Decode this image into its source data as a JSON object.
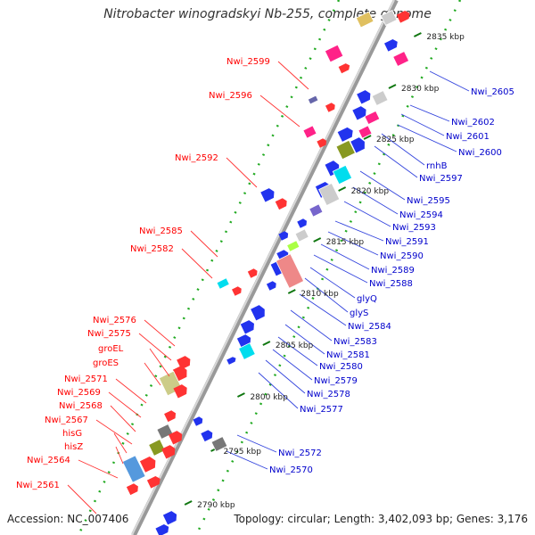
{
  "title": "Nitrobacter winogradskyi Nb-255, complete genome",
  "accession": "Accession: NC_007406",
  "topology": "Topology: circular; Length: 3,402,093 bp; Genes: 3,176",
  "colors": {
    "backbone": "#aaaaaa",
    "label_left": "#ff0000",
    "label_right": "#0000cc",
    "tick": "#228822"
  },
  "scale_labels": [
    "2835 kbp",
    "2830 kbp",
    "2825 kbp",
    "2820 kbp",
    "2815 kbp",
    "2810 kbp",
    "2805 kbp",
    "2800 kbp",
    "2795 kbp",
    "2790 kbp"
  ],
  "left_labels": [
    "Nwi_2599",
    "Nwi_2596",
    "Nwi_2592",
    "Nwi_2585",
    "Nwi_2582",
    "Nwi_2576",
    "Nwi_2575",
    "groEL",
    "groES",
    "Nwi_2571",
    "Nwi_2569",
    "Nwi_2568",
    "Nwi_2567",
    "hisG",
    "hisZ",
    "Nwi_2564",
    "Nwi_2561"
  ],
  "right_labels": [
    "Nwi_2605",
    "Nwi_2602",
    "Nwi_2601",
    "Nwi_2600",
    "rnhB",
    "Nwi_2597",
    "Nwi_2595",
    "Nwi_2594",
    "Nwi_2593",
    "Nwi_2591",
    "Nwi_2590",
    "Nwi_2589",
    "Nwi_2588",
    "glyQ",
    "glyS",
    "Nwi_2584",
    "Nwi_2583",
    "Nwi_2581",
    "Nwi_2580",
    "Nwi_2579",
    "Nwi_2578",
    "Nwi_2577",
    "Nwi_2572",
    "Nwi_2570"
  ]
}
